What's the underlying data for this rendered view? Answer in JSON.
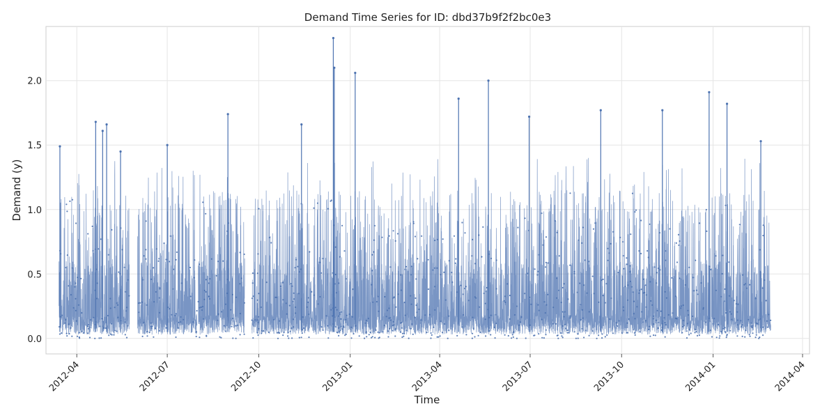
{
  "chart_data": {
    "type": "line",
    "title": "Demand Time Series for ID: dbd37b9f2f2bc0e3",
    "xlabel": "Time",
    "ylabel": "Demand (y)",
    "x_range": [
      "2012-03-01",
      "2014-04-08"
    ],
    "ylim": [
      -0.12,
      2.42
    ],
    "y_ticks": [
      "0.0",
      "0.5",
      "1.0",
      "1.5",
      "2.0"
    ],
    "x_ticks": [
      "2012-04",
      "2012-07",
      "2012-10",
      "2013-01",
      "2013-04",
      "2013-07",
      "2013-10",
      "2014-01",
      "2014-04"
    ],
    "grid": true,
    "legend": "none",
    "color": "#4c72b0",
    "data_span": [
      "2012-03-14",
      "2014-02-28"
    ],
    "gaps": [
      [
        "2012-05-24",
        "2012-06-01"
      ],
      [
        "2012-07-31",
        "2012-08-01"
      ],
      [
        "2012-09-17",
        "2012-09-24"
      ]
    ],
    "series": [
      {
        "x": [
          "2012-03-15",
          "2012-04-20",
          "2012-04-27",
          "2012-05-01",
          "2012-05-15",
          "2012-07-01",
          "2012-08-31",
          "2012-11-13",
          "2012-12-15",
          "2012-12-16",
          "2013-01-06",
          "2013-04-20",
          "2013-05-20",
          "2013-06-30",
          "2013-09-10",
          "2013-11-11",
          "2013-12-28",
          "2014-01-15",
          "2014-02-18"
        ],
        "y": [
          1.49,
          1.68,
          1.61,
          1.66,
          1.45,
          1.5,
          1.74,
          1.66,
          2.33,
          2.1,
          2.06,
          1.86,
          2.0,
          1.72,
          1.77,
          1.77,
          1.91,
          1.82,
          1.53
        ]
      }
    ]
  }
}
